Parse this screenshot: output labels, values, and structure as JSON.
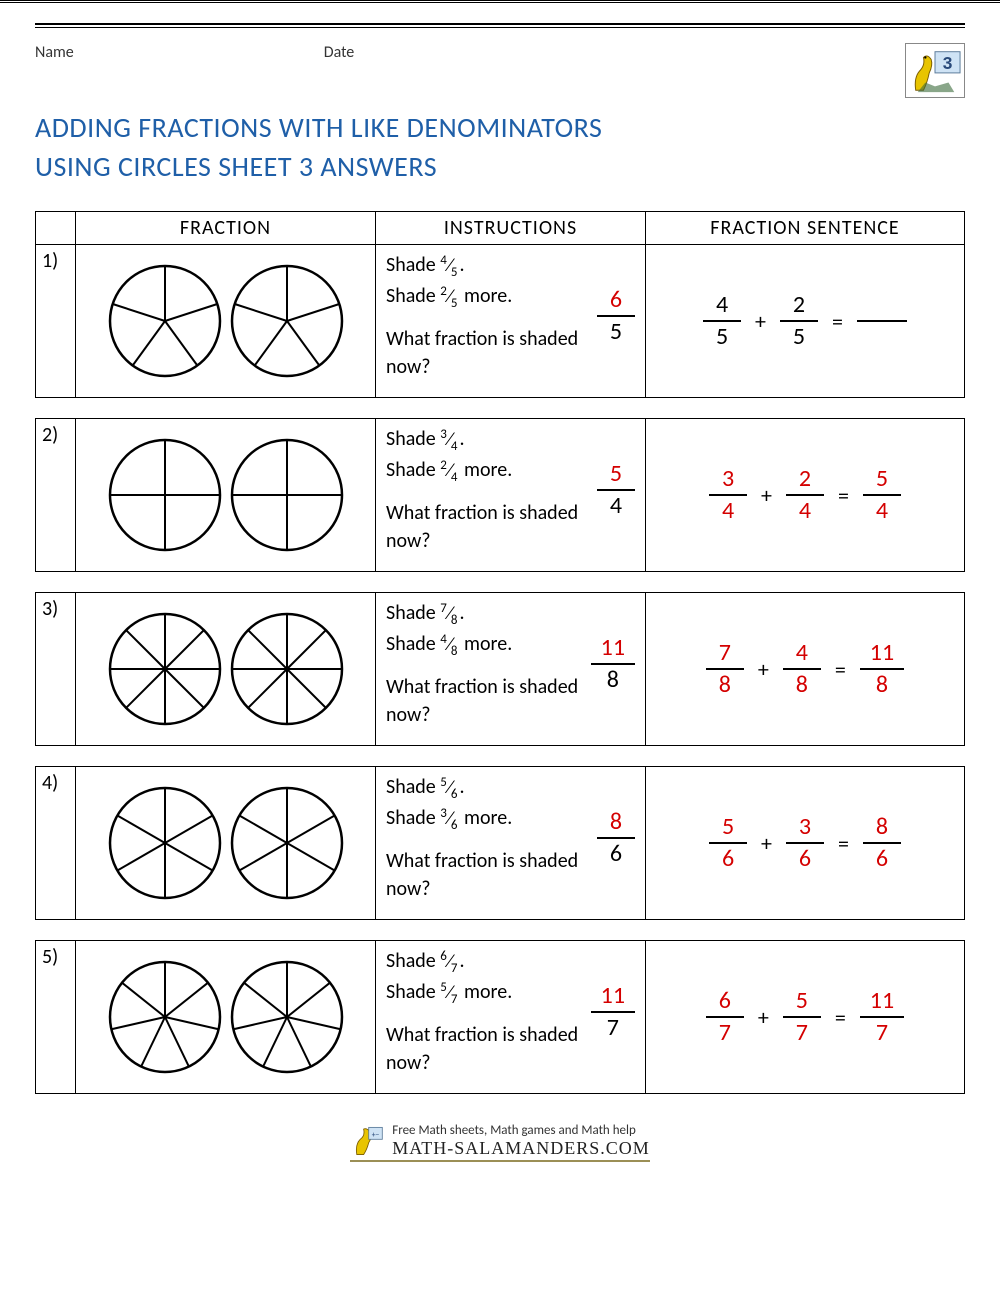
{
  "labels": {
    "name": "Name",
    "date": "Date"
  },
  "title_line1": "ADDING FRACTIONS WITH LIKE DENOMINATORS",
  "title_line2": "USING CIRCLES SHEET 3 ANSWERS",
  "headers": {
    "fraction": "FRACTION",
    "instructions": "INSTRUCTIONS",
    "sentence": "FRACTION SENTENCE"
  },
  "colors": {
    "title": "#1f5fa8",
    "answer": "#d40000",
    "text": "#000000",
    "border": "#000000"
  },
  "question_prompt": "What fraction is shaded now?",
  "shade_word": "Shade",
  "more_word": "more.",
  "problems": [
    {
      "num": "1)",
      "slices": 5,
      "shade1_n": "4",
      "shade1_d": "5",
      "shade2_n": "2",
      "shade2_d": "5",
      "answer_n": "6",
      "answer_d": "5",
      "sent_a_n": "4",
      "sent_a_d": "5",
      "sent_a_red": false,
      "sent_b_n": "2",
      "sent_b_d": "5",
      "sent_b_red": false,
      "sent_result_n": "",
      "sent_result_d": "",
      "sent_result_blank": true
    },
    {
      "num": "2)",
      "slices": 4,
      "shade1_n": "3",
      "shade1_d": "4",
      "shade2_n": "2",
      "shade2_d": "4",
      "answer_n": "5",
      "answer_d": "4",
      "sent_a_n": "3",
      "sent_a_d": "4",
      "sent_a_red": true,
      "sent_b_n": "2",
      "sent_b_d": "4",
      "sent_b_red": true,
      "sent_result_n": "5",
      "sent_result_d": "4",
      "sent_result_blank": false
    },
    {
      "num": "3)",
      "slices": 8,
      "shade1_n": "7",
      "shade1_d": "8",
      "shade2_n": "4",
      "shade2_d": "8",
      "answer_n": "11",
      "answer_d": "8",
      "sent_a_n": "7",
      "sent_a_d": "8",
      "sent_a_red": true,
      "sent_b_n": "4",
      "sent_b_d": "8",
      "sent_b_red": true,
      "sent_result_n": "11",
      "sent_result_d": "8",
      "sent_result_blank": false
    },
    {
      "num": "4)",
      "slices": 6,
      "shade1_n": "5",
      "shade1_d": "6",
      "shade2_n": "3",
      "shade2_d": "6",
      "answer_n": "8",
      "answer_d": "6",
      "sent_a_n": "5",
      "sent_a_d": "6",
      "sent_a_red": true,
      "sent_b_n": "3",
      "sent_b_d": "6",
      "sent_b_red": true,
      "sent_result_n": "8",
      "sent_result_d": "6",
      "sent_result_blank": false
    },
    {
      "num": "5)",
      "slices": 7,
      "shade1_n": "6",
      "shade1_d": "7",
      "shade2_n": "5",
      "shade2_d": "7",
      "answer_n": "11",
      "answer_d": "7",
      "sent_a_n": "6",
      "sent_a_d": "7",
      "sent_a_red": true,
      "sent_b_n": "5",
      "sent_b_d": "7",
      "sent_b_red": true,
      "sent_result_n": "11",
      "sent_result_d": "7",
      "sent_result_blank": false
    }
  ],
  "grade_badge": "3",
  "footer": {
    "tagline": "Free Math sheets, Math games and Math help",
    "site": "MATH-SALAMANDERS.COM"
  }
}
